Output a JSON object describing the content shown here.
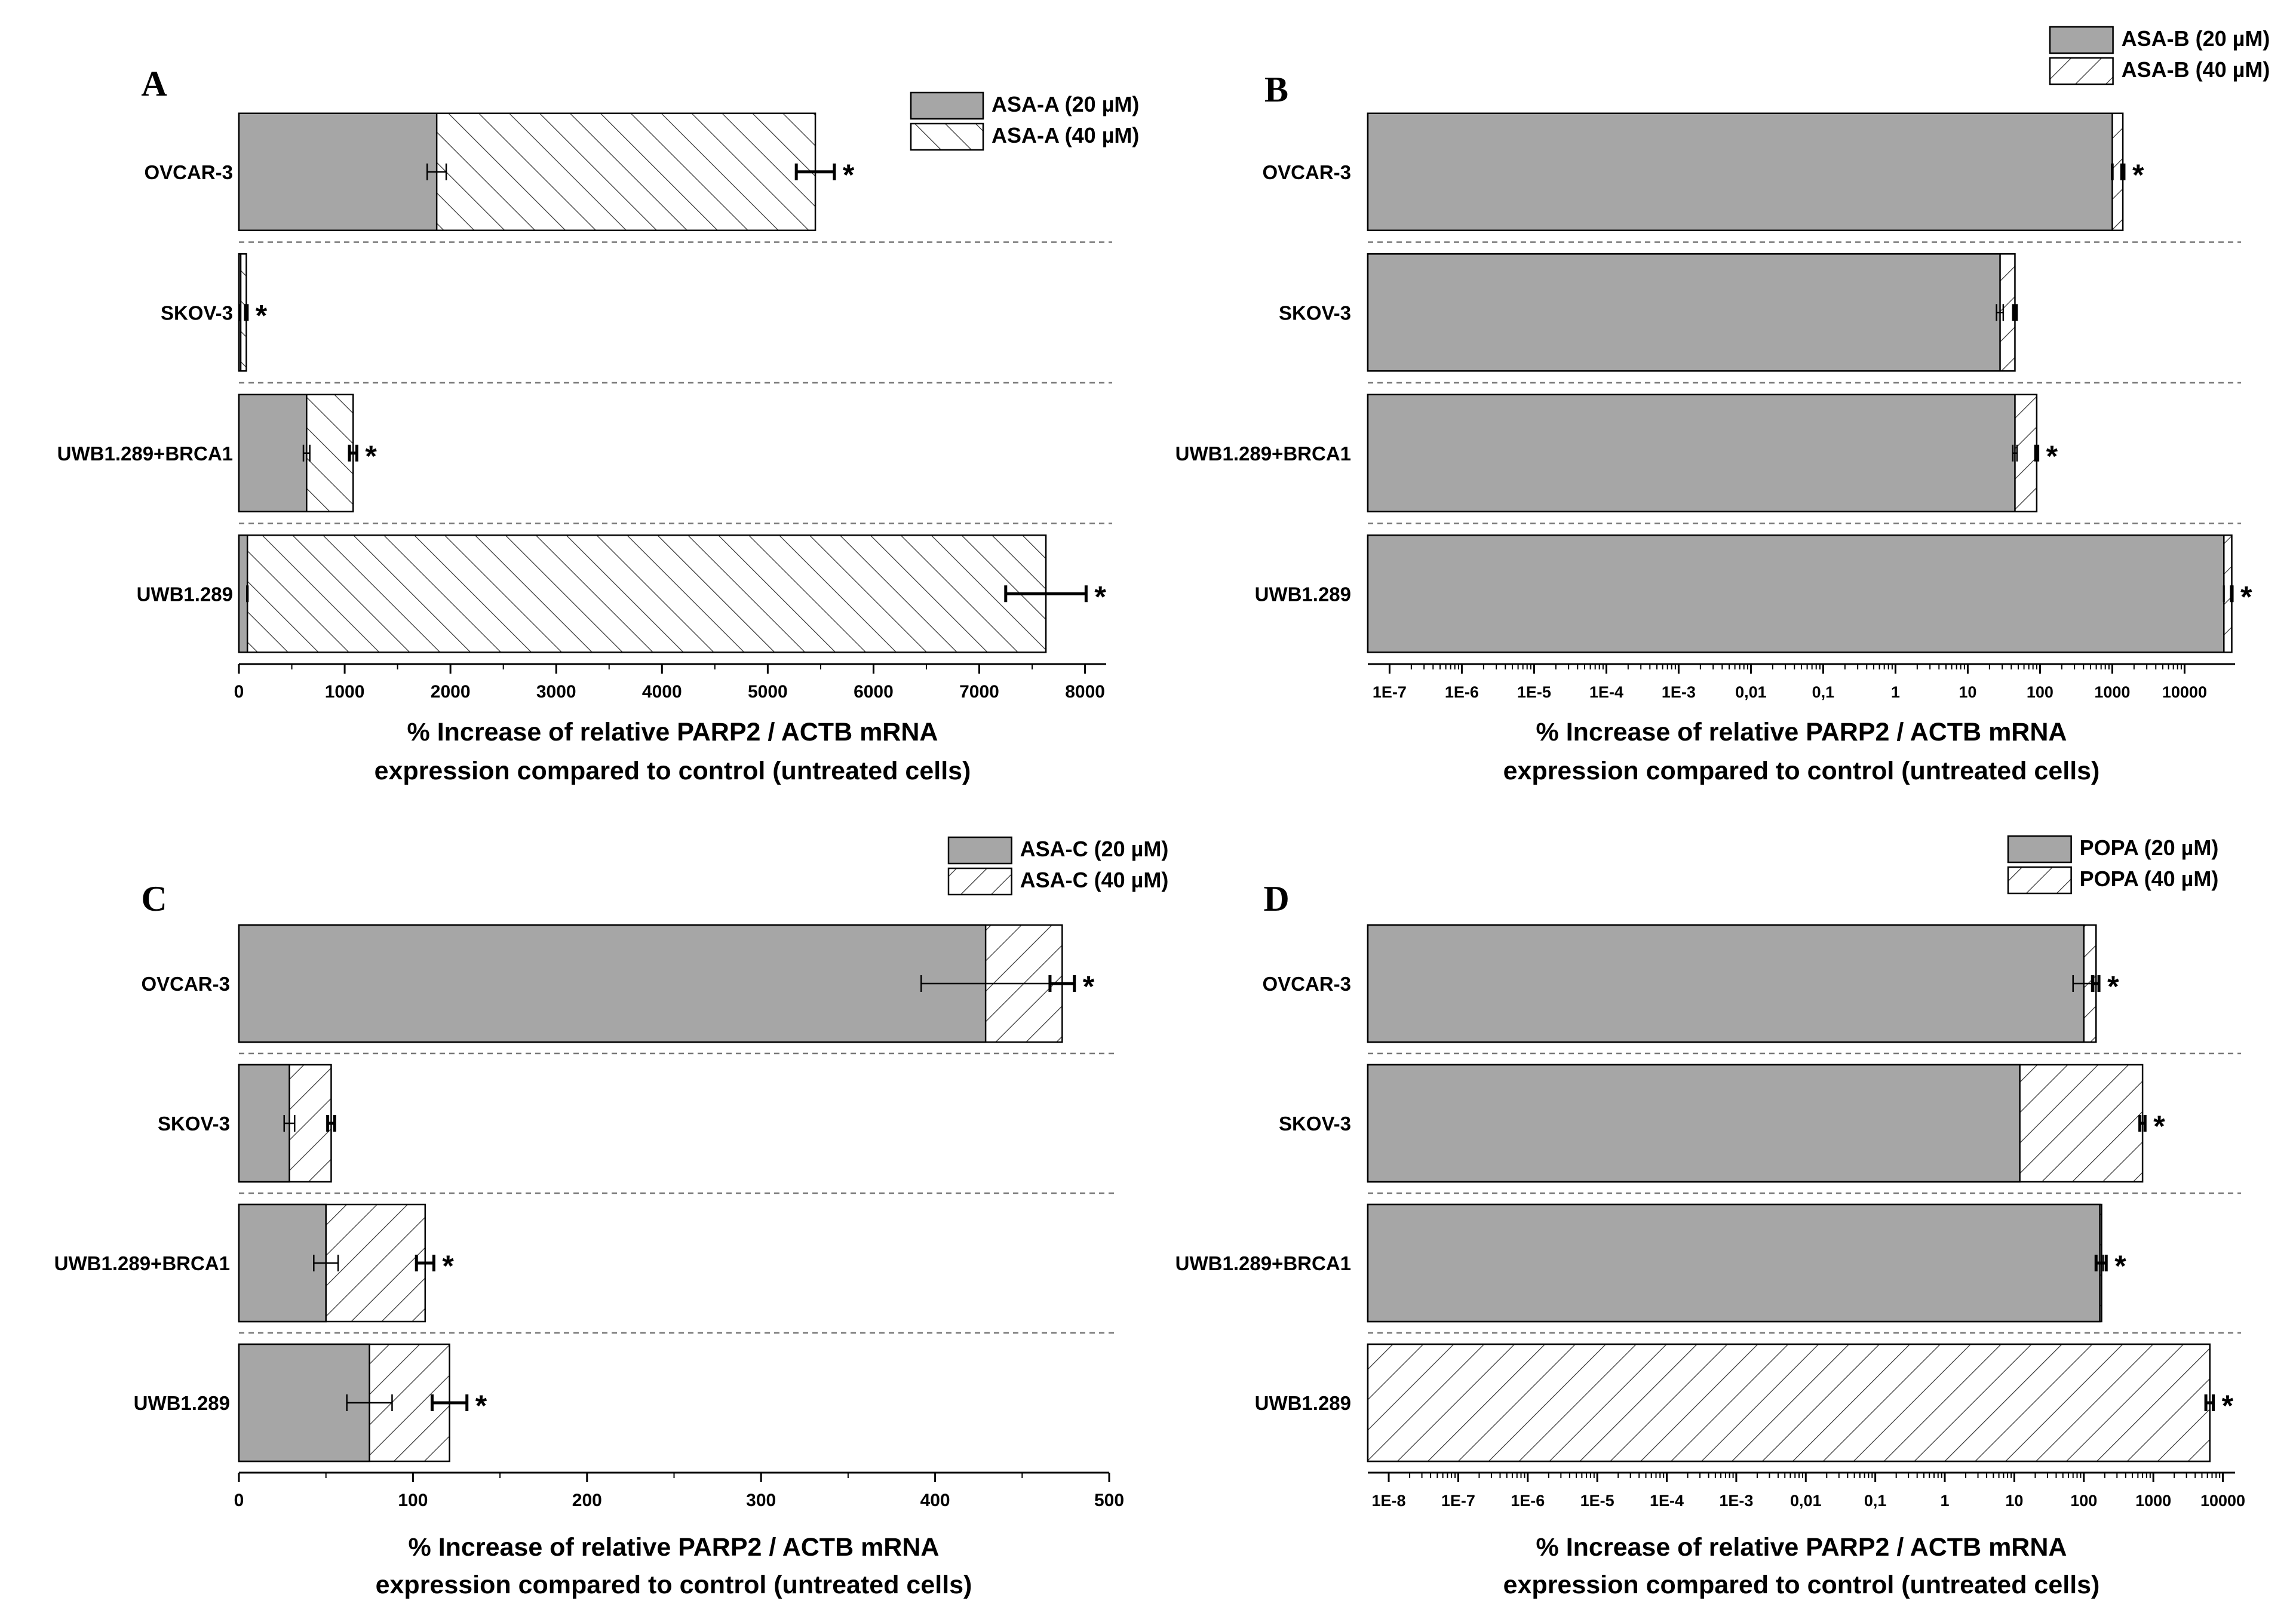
{
  "chart_data": [
    {
      "panel_label": "A",
      "type": "bar",
      "orientation": "horizontal",
      "scale": "linear",
      "categories": [
        "OVCAR-3",
        "SKOV-3",
        "UWB1.289+BRCA1",
        "UWB1.289"
      ],
      "series": [
        {
          "name": "ASA-A (20 µM)",
          "pattern": "solid-gray",
          "values": [
            1870,
            10,
            640,
            80
          ],
          "errors": [
            90,
            5,
            30,
            5
          ]
        },
        {
          "name": "ASA-A (40 µM)",
          "pattern": "hatch-right",
          "values": [
            5450,
            70,
            1080,
            7630
          ],
          "errors": [
            180,
            8,
            35,
            380
          ]
        }
      ],
      "significance": [
        "*",
        "*",
        "*",
        "*"
      ],
      "xlim": [
        0,
        8200
      ],
      "xticks": [
        "0",
        "1000",
        "2000",
        "3000",
        "4000",
        "5000",
        "6000",
        "7000",
        "8000"
      ],
      "xlabel": [
        "% Increase of relative PARP2 / ACTB mRNA",
        "expression compared to control (untreated cells)"
      ],
      "legend_position": "top-right",
      "grid": false
    },
    {
      "panel_label": "B",
      "type": "bar",
      "orientation": "horizontal",
      "scale": "log",
      "categories": [
        "OVCAR-3",
        "SKOV-3",
        "UWB1.289+BRCA1",
        "UWB1.289"
      ],
      "series": [
        {
          "name": "ASA-B (20 µM)",
          "pattern": "solid-gray",
          "values": [
            1000,
            28,
            45,
            35000
          ],
          "errors": [
            20,
            3,
            3,
            200
          ]
        },
        {
          "name": "ASA-B (40 µM)",
          "pattern": "hatch-left",
          "values": [
            1400,
            45,
            90,
            45000
          ],
          "errors": [
            50,
            2,
            3,
            500
          ]
        }
      ],
      "significance": [
        "*",
        "",
        "*",
        "*"
      ],
      "xlim": [
        5e-08,
        50000
      ],
      "xticks": [
        "1E-7",
        "1E-6",
        "1E-5",
        "1E-4",
        "1E-3",
        "0,01",
        "0,1",
        "1",
        "10",
        "100",
        "1000",
        "10000"
      ],
      "xlabel": [
        "% Increase of relative PARP2 / ACTB mRNA",
        "expression compared to control (untreated cells)"
      ],
      "legend_position": "top-right",
      "grid": false
    },
    {
      "panel_label": "C",
      "type": "bar",
      "orientation": "horizontal",
      "scale": "linear",
      "categories": [
        "OVCAR-3",
        "SKOV-3",
        "UWB1.289+BRCA1",
        "UWB1.289"
      ],
      "series": [
        {
          "name": "ASA-C (20 µM)",
          "pattern": "solid-gray",
          "values": [
            429,
            29,
            50,
            75
          ],
          "errors": [
            37,
            3,
            7,
            13
          ]
        },
        {
          "name": "ASA-C (40 µM)",
          "pattern": "hatch-left",
          "values": [
            473,
            53,
            107,
            121
          ],
          "errors": [
            7,
            2,
            5,
            10
          ]
        }
      ],
      "significance": [
        "*",
        "",
        "*",
        "*"
      ],
      "xlim": [
        0,
        500
      ],
      "xticks": [
        "0",
        "100",
        "200",
        "300",
        "400",
        "500"
      ],
      "xlabel": [
        "% Increase of relative PARP2 / ACTB mRNA",
        "expression compared to control (untreated cells)"
      ],
      "legend_position": "top-right",
      "grid": false
    },
    {
      "panel_label": "D",
      "type": "bar",
      "orientation": "horizontal",
      "scale": "log",
      "categories": [
        "OVCAR-3",
        "SKOV-3",
        "UWB1.289+BRCA1",
        "UWB1.289"
      ],
      "series": [
        {
          "name": "POPA (20 µM)",
          "pattern": "solid-gray",
          "values": [
            100,
            12,
            170,
            6500
          ],
          "errors": [
            30,
            0,
            20,
            800
          ]
        },
        {
          "name": "POPA (40 µM)",
          "pattern": "hatch-left",
          "values": [
            150,
            700,
            180,
            6500
          ],
          "errors": [
            15,
            60,
            30,
            800
          ]
        }
      ],
      "significance": [
        "*",
        "*",
        "*",
        "*"
      ],
      "xlim": [
        5e-09,
        15000
      ],
      "xticks": [
        "1E-8",
        "1E-7",
        "1E-6",
        "1E-5",
        "1E-4",
        "1E-3",
        "0,01",
        "0,1",
        "1",
        "10",
        "100",
        "1000",
        "10000"
      ],
      "xlabel": [
        "% Increase of relative PARP2 / ACTB mRNA",
        "expression compared to control (untreated cells)"
      ],
      "legend_position": "top-right",
      "grid": false
    }
  ],
  "colors": {
    "bar_fill": "#a6a6a6",
    "hatch_bg": "#ffffff",
    "hatch_line": "#333333",
    "axis": "#000000",
    "separator": "#777777"
  }
}
